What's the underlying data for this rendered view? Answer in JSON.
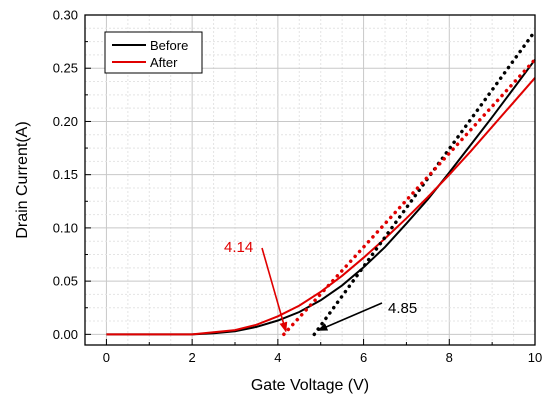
{
  "chart_data": {
    "type": "line",
    "xlabel": "Gate Voltage (V)",
    "ylabel": "Drain Current(A)",
    "xlim": [
      -0.5,
      10
    ],
    "ylim": [
      -0.01,
      0.3
    ],
    "x_ticks": [
      0,
      2,
      4,
      6,
      8,
      10
    ],
    "y_ticks": [
      0.0,
      0.05,
      0.1,
      0.15,
      0.2,
      0.25,
      0.3
    ],
    "x_tick_labels": [
      "0",
      "2",
      "4",
      "6",
      "8",
      "10"
    ],
    "y_tick_labels": [
      "0.00",
      "0.05",
      "0.10",
      "0.15",
      "0.20",
      "0.25",
      "0.30"
    ],
    "grid": true,
    "legend_position": "top-left",
    "series": [
      {
        "name": "Before",
        "color": "#000000",
        "x": [
          0,
          1,
          2,
          2.5,
          3,
          3.5,
          4,
          4.5,
          5,
          5.5,
          6,
          6.5,
          7,
          7.5,
          8,
          8.5,
          9,
          9.5,
          10
        ],
        "y": [
          0,
          0,
          0,
          0.001,
          0.003,
          0.007,
          0.013,
          0.021,
          0.032,
          0.046,
          0.063,
          0.082,
          0.104,
          0.127,
          0.152,
          0.178,
          0.204,
          0.231,
          0.258
        ]
      },
      {
        "name": "After",
        "color": "#e00000",
        "x": [
          0,
          1,
          2,
          2.5,
          3,
          3.5,
          4,
          4.5,
          5,
          5.5,
          6,
          6.5,
          7,
          7.5,
          8,
          8.5,
          9,
          9.5,
          10
        ],
        "y": [
          0,
          0,
          0,
          0.002,
          0.004,
          0.009,
          0.017,
          0.027,
          0.04,
          0.055,
          0.072,
          0.09,
          0.109,
          0.129,
          0.15,
          0.172,
          0.195,
          0.218,
          0.241
        ]
      }
    ],
    "fit_lines": [
      {
        "series": "Before",
        "color": "#000000",
        "x0": 4.85,
        "slope": 0.05532
      },
      {
        "series": "After",
        "color": "#e00000",
        "x0": 4.14,
        "slope": 0.04406
      }
    ],
    "annotations": [
      {
        "text": "4.14",
        "color": "#e00000",
        "target_x": 4.14
      },
      {
        "text": "4.85",
        "color": "#000000",
        "target_x": 4.85
      }
    ]
  }
}
